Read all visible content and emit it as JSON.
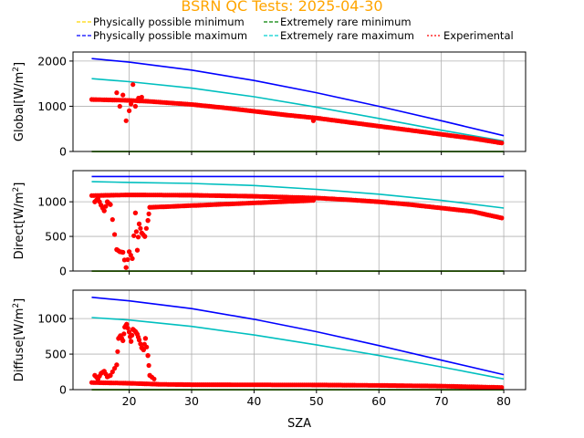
{
  "title": "BSRN QC Tests: 2025-04-30",
  "title_color": "#ffa500",
  "legend": [
    {
      "label": "Physically possible minimum",
      "color": "#ffd700",
      "style": "dashed"
    },
    {
      "label": "Extremely rare minimum",
      "color": "#008000",
      "style": "dashed"
    },
    {
      "label": "Physically possible maximum",
      "color": "#0000ff",
      "style": "dashed"
    },
    {
      "label": "Extremely rare maximum",
      "color": "#00d0d0",
      "style": "dashed"
    },
    {
      "label": "Experimental",
      "color": "#ff0000",
      "style": "dotted"
    }
  ],
  "xlabel": "SZA",
  "chart_data": [
    {
      "type": "line",
      "panel": "global",
      "ylabel": "Global[W/m²]",
      "ylabel_main": "Global[W/m",
      "ylabel_sup": "2",
      "ylabel_end": "]",
      "xlim": [
        11,
        83.5
      ],
      "ylim": [
        0,
        2200
      ],
      "xticks": [
        20,
        30,
        40,
        50,
        60,
        70,
        80
      ],
      "yticks": [
        0,
        1000,
        2000
      ],
      "grid": true,
      "series": [
        {
          "name": "Physically possible minimum",
          "color": "#ffd700",
          "x": [
            14,
            80
          ],
          "y": [
            -4,
            -4
          ]
        },
        {
          "name": "Extremely rare minimum",
          "color": "#008000",
          "x": [
            14,
            80
          ],
          "y": [
            -2,
            -2
          ]
        },
        {
          "name": "Physically possible maximum",
          "color": "#0000ff",
          "x": [
            14,
            20,
            30,
            40,
            50,
            60,
            70,
            80
          ],
          "y": [
            2055,
            1975,
            1800,
            1570,
            1300,
            1000,
            680,
            350
          ]
        },
        {
          "name": "Extremely rare maximum",
          "color": "#00bfbf",
          "x": [
            14,
            20,
            30,
            40,
            50,
            60,
            70,
            80
          ],
          "y": [
            1610,
            1545,
            1400,
            1210,
            980,
            730,
            470,
            230
          ]
        },
        {
          "name": "Experimental",
          "color": "#ff0000",
          "x": [
            14,
            17,
            20,
            23,
            26,
            30,
            35,
            40,
            45,
            50,
            55,
            60,
            65,
            70,
            75,
            80
          ],
          "y": [
            1150,
            1140,
            1130,
            1110,
            1080,
            1040,
            970,
            890,
            810,
            740,
            650,
            560,
            470,
            380,
            290,
            180
          ]
        },
        {
          "name": "Experimental",
          "color": "#ff0000",
          "x": [
            18,
            18.5,
            19,
            19.5,
            20,
            20.3,
            20.6,
            21,
            21.5,
            22,
            49.5
          ],
          "y": [
            1300,
            1000,
            1250,
            680,
            900,
            1050,
            1480,
            1000,
            1180,
            1200,
            680
          ]
        }
      ]
    },
    {
      "type": "line",
      "panel": "direct",
      "ylabel": "Direct[W/m²]",
      "ylabel_main": "Direct[W/m",
      "ylabel_sup": "2",
      "ylabel_end": "]",
      "xlim": [
        11,
        83.5
      ],
      "ylim": [
        0,
        1450
      ],
      "xticks": [
        20,
        30,
        40,
        50,
        60,
        70,
        80
      ],
      "yticks": [
        0,
        500,
        1000
      ],
      "grid": true,
      "series": [
        {
          "name": "Physically possible minimum",
          "color": "#ffd700",
          "x": [
            14,
            80
          ],
          "y": [
            -3,
            -3
          ]
        },
        {
          "name": "Extremely rare minimum",
          "color": "#008000",
          "x": [
            14,
            80
          ],
          "y": [
            -1,
            -1
          ]
        },
        {
          "name": "Physically possible maximum",
          "color": "#0000ff",
          "x": [
            14,
            80
          ],
          "y": [
            1365,
            1365
          ]
        },
        {
          "name": "Extremely rare maximum",
          "color": "#00bfbf",
          "x": [
            14,
            20,
            30,
            40,
            50,
            60,
            70,
            80
          ],
          "y": [
            1290,
            1280,
            1265,
            1235,
            1180,
            1110,
            1020,
            910
          ]
        },
        {
          "name": "Experimental",
          "color": "#ff0000",
          "x": [
            14,
            20,
            30,
            40,
            50,
            55,
            60,
            65,
            70,
            75,
            80
          ],
          "y": [
            1090,
            1100,
            1095,
            1080,
            1055,
            1030,
            1000,
            960,
            910,
            860,
            760
          ]
        },
        {
          "name": "Experimental",
          "color": "#ff0000",
          "x": [
            14.5,
            15,
            15.5,
            16,
            16.5,
            17,
            18,
            18.5,
            19,
            19.5,
            20,
            20.5,
            21,
            21.3,
            21.6,
            22,
            22.5,
            23,
            23.3,
            49.5
          ],
          "y": [
            1000,
            1050,
            950,
            870,
            1000,
            960,
            310,
            280,
            270,
            50,
            280,
            180,
            840,
            300,
            680,
            550,
            500,
            730,
            920,
            1020
          ]
        }
      ]
    },
    {
      "type": "line",
      "panel": "diffuse",
      "ylabel": "Diffuse[W/m²]",
      "ylabel_main": "Diffuse[W/m",
      "ylabel_sup": "2",
      "ylabel_end": "]",
      "xlim": [
        11,
        83.5
      ],
      "ylim": [
        0,
        1400
      ],
      "xticks": [
        20,
        30,
        40,
        50,
        60,
        70,
        80
      ],
      "yticks": [
        0,
        500,
        1000
      ],
      "grid": true,
      "series": [
        {
          "name": "Physically possible minimum",
          "color": "#ffd700",
          "x": [
            14,
            80
          ],
          "y": [
            -3,
            -3
          ]
        },
        {
          "name": "Extremely rare minimum",
          "color": "#008000",
          "x": [
            14,
            80
          ],
          "y": [
            -1,
            -1
          ]
        },
        {
          "name": "Physically possible maximum",
          "color": "#0000ff",
          "x": [
            14,
            20,
            30,
            40,
            50,
            60,
            70,
            80
          ],
          "y": [
            1300,
            1250,
            1140,
            990,
            815,
            620,
            415,
            210
          ]
        },
        {
          "name": "Extremely rare maximum",
          "color": "#00bfbf",
          "x": [
            14,
            20,
            30,
            40,
            50,
            60,
            70,
            80
          ],
          "y": [
            1015,
            980,
            890,
            770,
            630,
            480,
            320,
            150
          ]
        },
        {
          "name": "Experimental",
          "color": "#ff0000",
          "x": [
            14,
            20,
            25,
            30,
            40,
            50,
            60,
            70,
            80
          ],
          "y": [
            100,
            90,
            75,
            70,
            68,
            66,
            60,
            50,
            30
          ]
        },
        {
          "name": "Experimental",
          "color": "#ff0000",
          "x": [
            14.5,
            15,
            15.5,
            16,
            16.5,
            17,
            18,
            18.3,
            18.6,
            19,
            19.3,
            19.6,
            20,
            20.3,
            20.6,
            21,
            21.3,
            21.6,
            22,
            22.3,
            22.6,
            23,
            23.3,
            24
          ],
          "y": [
            200,
            150,
            230,
            260,
            180,
            200,
            350,
            720,
            760,
            690,
            880,
            920,
            810,
            680,
            850,
            820,
            780,
            700,
            590,
            560,
            720,
            480,
            200,
            150
          ]
        }
      ]
    }
  ]
}
